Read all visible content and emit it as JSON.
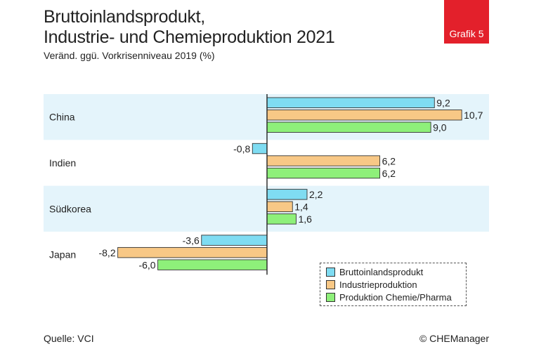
{
  "header": {
    "title_line1": "Bruttoinlandsprodukt,",
    "title_line2": "Industrie- und Chemieproduktion 2021",
    "subtitle": "Veränd. ggü. Vorkrisenniveau 2019 (%)",
    "badge": "Grafik 5"
  },
  "footer": {
    "source": "Quelle: VCI",
    "copyright": "© CHEManager"
  },
  "colors": {
    "bip": "#7fdcf2",
    "industrie": "#f8c886",
    "chemie": "#8ef07a",
    "row_band": "#e4f4fb"
  },
  "chart_data": {
    "type": "bar",
    "orientation": "horizontal",
    "categories": [
      "China",
      "Indien",
      "Südkorea",
      "Japan"
    ],
    "series": [
      {
        "name": "Bruttoinlandsprodukt",
        "values": [
          9.2,
          -0.8,
          2.2,
          -3.6
        ],
        "labels": [
          "9,2",
          "-0,8",
          "2,2",
          "-3,6"
        ]
      },
      {
        "name": "Industrieproduktion",
        "values": [
          10.7,
          6.2,
          1.4,
          -8.2
        ],
        "labels": [
          "10,7",
          "6,2",
          "1,4",
          "-8,2"
        ]
      },
      {
        "name": "Produktion Chemie/Pharma",
        "values": [
          9.0,
          6.2,
          1.6,
          -6.0
        ],
        "labels": [
          "9,0",
          "6,2",
          "1,6",
          "-6,0"
        ]
      }
    ],
    "xlim": [
      -8.2,
      10.7
    ],
    "grid": false,
    "legend": "bottom-right"
  }
}
